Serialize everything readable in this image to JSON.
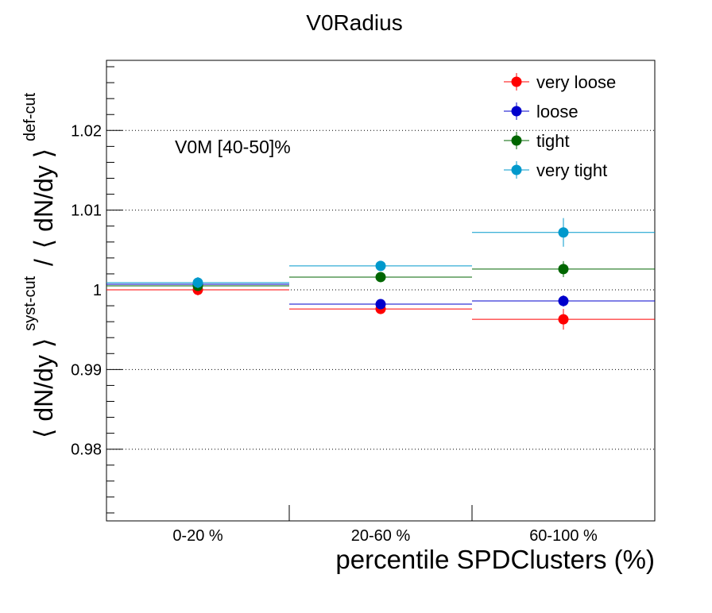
{
  "chart_data": {
    "type": "scatter",
    "title": "V0Radius",
    "annotation": "V0M [40-50]%",
    "xlabel": "percentile SPDClusters (%)",
    "ylabel": {
      "open": "⟨ dN/dy ⟩",
      "num_sup": "syst-cut",
      "slash": "/",
      "den": "⟨ dN/dy ⟩",
      "den_sup": "def-cut"
    },
    "categories": [
      "0-20 %",
      "20-60 %",
      "60-100 %"
    ],
    "ylim": [
      0.971,
      1.0288
    ],
    "yticks": [
      0.98,
      0.99,
      1,
      1.01,
      1.02
    ],
    "ytick_labels": [
      "0.98",
      "0.99",
      "1",
      "1.01",
      "1.02"
    ],
    "grid": "horizontal dotted at labeled ticks",
    "legend_position": "top-right",
    "series": [
      {
        "name": "very loose",
        "color": "#ff0000",
        "values": [
          1.0,
          0.9976,
          0.9963
        ],
        "errors": [
          0.0007,
          0.0004,
          0.0013
        ]
      },
      {
        "name": "loose",
        "color": "#0000cc",
        "values": [
          1.0007,
          0.9982,
          0.9986
        ],
        "errors": [
          0.0005,
          0.0004,
          0.0007
        ]
      },
      {
        "name": "tight",
        "color": "#006600",
        "values": [
          1.0005,
          1.0016,
          1.0026
        ],
        "errors": [
          0.0005,
          0.0004,
          0.001
        ]
      },
      {
        "name": "very tight",
        "color": "#0099cc",
        "values": [
          1.0009,
          1.003,
          1.0072
        ],
        "errors": [
          0.0007,
          0.0004,
          0.0018
        ]
      }
    ]
  }
}
